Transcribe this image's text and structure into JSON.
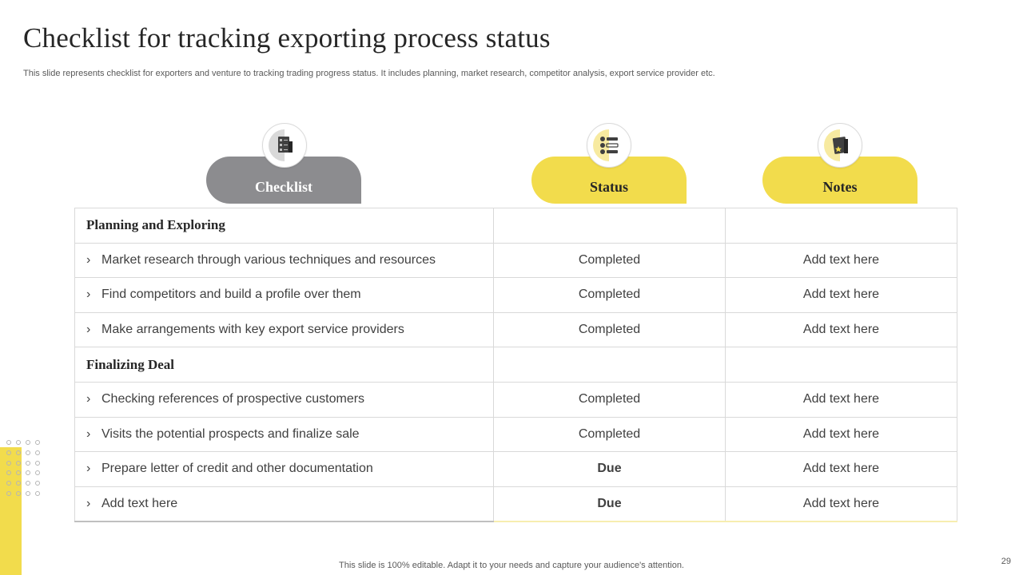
{
  "slide": {
    "title": "Checklist for tracking exporting process status",
    "subtitle": "This slide represents checklist for exporters and venture to tracking trading progress status. It includes planning, market research, competitor analysis, export service provider etc.",
    "footer": "This slide is 100% editable. Adapt it to your needs and capture your audience's attention.",
    "page_number": "29"
  },
  "headers": {
    "checklist": {
      "label": "Checklist",
      "icon": "clipboard-checklist-icon"
    },
    "status": {
      "label": "Status",
      "icon": "task-list-icon"
    },
    "notes": {
      "label": "Notes",
      "icon": "notes-star-icon"
    }
  },
  "colors": {
    "accent_yellow": "#f2dc4c",
    "header_gray": "#8c8c8f",
    "due_red": "#c00000"
  },
  "sections": [
    {
      "name": "Planning and Exploring",
      "items": [
        {
          "task": "Market research through various techniques and resources",
          "status": "Completed",
          "notes": "Add text here"
        },
        {
          "task": "Find competitors and build a profile over them",
          "status": "Completed",
          "notes": "Add text here"
        },
        {
          "task": "Make arrangements with key export service providers",
          "status": "Completed",
          "notes": "Add text here"
        }
      ]
    },
    {
      "name": "Finalizing Deal",
      "items": [
        {
          "task": "Checking references of prospective customers",
          "status": "Completed",
          "notes": "Add text here"
        },
        {
          "task": "Visits the potential prospects  and finalize sale",
          "status": "Completed",
          "notes": "Add text here"
        },
        {
          "task": "Prepare letter of credit and other documentation",
          "status": "Due",
          "notes": "Add text here"
        },
        {
          "task": "Add text here",
          "status": "Due",
          "notes": "Add text here"
        }
      ]
    }
  ]
}
